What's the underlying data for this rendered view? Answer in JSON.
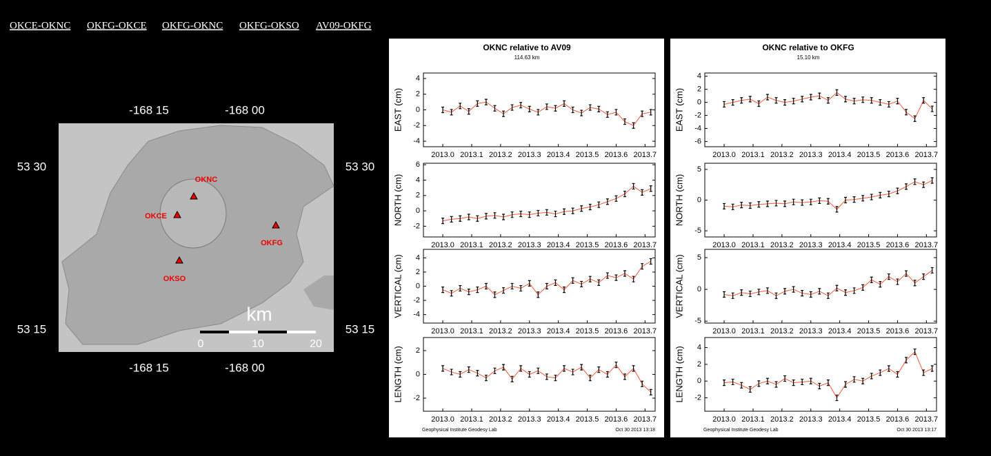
{
  "links": [
    "OKCE-OKNC",
    "OKFG-OKCE",
    "OKFG-OKNC",
    "OKFG-OKSO",
    "AV09-OKFG"
  ],
  "map": {
    "top_labels": [
      "-168 15",
      "-168 00"
    ],
    "bottom_labels": [
      "-168 15",
      "-168 00"
    ],
    "left_labels": [
      "53 30",
      "53 15"
    ],
    "right_labels": [
      "53 30",
      "53 15"
    ],
    "stations": [
      "OKNC",
      "OKCE",
      "OKFG",
      "OKSO"
    ],
    "scale_title": "km",
    "scale_ticks": [
      0,
      10,
      20
    ]
  },
  "panels": [
    {
      "title": "OKNC relative to AV09",
      "subtitle": "114.63 km",
      "footer_left": "Geophysical Institute Geodesy Lab",
      "footer_right": "Oct 30 2013 13:18"
    },
    {
      "title": "OKNC relative to OKFG",
      "subtitle": "15.10 km",
      "footer_left": "Geophysical Institute Geodesy Lab",
      "footer_right": "Oct 30 2013 13:17"
    }
  ],
  "chart_data": [
    {
      "type": "line",
      "ylabel": "EAST (cm)",
      "color": "#000000",
      "line_color": "#ff5533",
      "x": [
        2013.0,
        2013.03,
        2013.06,
        2013.09,
        2013.12,
        2013.15,
        2013.18,
        2013.21,
        2013.24,
        2013.27,
        2013.3,
        2013.33,
        2013.36,
        2013.39,
        2013.42,
        2013.45,
        2013.48,
        2013.51,
        2013.54,
        2013.57,
        2013.6,
        2013.63,
        2013.66,
        2013.69,
        2013.72
      ],
      "values": [
        0,
        -0.3,
        0.5,
        -0.2,
        0.8,
        1.0,
        0.2,
        -0.5,
        0.3,
        0.6,
        0.1,
        -0.3,
        0.4,
        0.2,
        0.8,
        0,
        -0.4,
        0.3,
        0.1,
        -0.6,
        -0.3,
        -1.5,
        -2.0,
        -0.5,
        -0.3
      ],
      "xlim": [
        2012.933,
        2013.735
      ],
      "xticks": [
        {
          "value": 2013.0,
          "label": "2013.0"
        },
        2013.1,
        2013.2,
        2013.3,
        2013.4,
        2013.5,
        2013.6,
        2013.7
      ],
      "ylim": [
        -4.7,
        4.7
      ],
      "yticks": [
        -4,
        -2,
        0,
        2,
        4
      ]
    },
    {
      "type": "line",
      "ylabel": "NORTH (cm)",
      "color": "#000000",
      "line_color": "#ff5533",
      "x": [
        2013.0,
        2013.03,
        2013.06,
        2013.09,
        2013.12,
        2013.15,
        2013.18,
        2013.21,
        2013.24,
        2013.27,
        2013.3,
        2013.33,
        2013.36,
        2013.39,
        2013.42,
        2013.45,
        2013.48,
        2013.51,
        2013.54,
        2013.57,
        2013.6,
        2013.63,
        2013.66,
        2013.69,
        2013.72
      ],
      "values": [
        -1.3,
        -1.1,
        -1.0,
        -0.8,
        -1.0,
        -0.7,
        -0.6,
        -0.8,
        -0.5,
        -0.4,
        -0.5,
        -0.3,
        -0.2,
        -0.4,
        -0.1,
        0,
        0.3,
        0.5,
        0.8,
        1.2,
        1.6,
        2.2,
        3.2,
        2.4,
        2.9
      ],
      "xlim": [
        2012.933,
        2013.735
      ],
      "xticks": [
        {
          "value": 2013.0,
          "label": "2013.0"
        },
        2013.1,
        2013.2,
        2013.3,
        2013.4,
        2013.5,
        2013.6,
        2013.7
      ],
      "ylim": [
        -3.4,
        6.2
      ],
      "yticks": [
        -2,
        0,
        2,
        4,
        6
      ]
    },
    {
      "type": "line",
      "ylabel": "VERTICAL (cm)",
      "color": "#000000",
      "line_color": "#ff5533",
      "x": [
        2013.0,
        2013.03,
        2013.06,
        2013.09,
        2013.12,
        2013.15,
        2013.18,
        2013.21,
        2013.24,
        2013.27,
        2013.3,
        2013.33,
        2013.36,
        2013.39,
        2013.42,
        2013.45,
        2013.48,
        2013.51,
        2013.54,
        2013.57,
        2013.6,
        2013.63,
        2013.66,
        2013.69,
        2013.72
      ],
      "values": [
        -0.5,
        -1,
        -0.3,
        -0.8,
        -0.5,
        0,
        -1.2,
        -0.6,
        0,
        -0.3,
        0.4,
        -1.2,
        0,
        0.5,
        -0.5,
        0.8,
        0.3,
        1.0,
        0.5,
        1.5,
        1.2,
        1.8,
        1.0,
        2.8,
        3.5
      ],
      "xlim": [
        2012.933,
        2013.735
      ],
      "xticks": [
        {
          "value": 2013.0,
          "label": "2013.0"
        },
        2013.1,
        2013.2,
        2013.3,
        2013.4,
        2013.5,
        2013.6,
        2013.7
      ],
      "ylim": [
        -5.2,
        5.2
      ],
      "yticks": [
        -4,
        -2,
        0,
        2,
        4
      ]
    },
    {
      "type": "line",
      "ylabel": "LENGTH (cm)",
      "color": "#000000",
      "line_color": "#ff5533",
      "x": [
        2013.0,
        2013.03,
        2013.06,
        2013.09,
        2013.12,
        2013.15,
        2013.18,
        2013.21,
        2013.24,
        2013.27,
        2013.3,
        2013.33,
        2013.36,
        2013.39,
        2013.42,
        2013.45,
        2013.48,
        2013.51,
        2013.54,
        2013.57,
        2013.6,
        2013.63,
        2013.66,
        2013.69,
        2013.72
      ],
      "values": [
        0.5,
        0.2,
        0,
        0.4,
        0.1,
        -0.3,
        0.3,
        0.6,
        -0.4,
        0.5,
        0,
        0.3,
        -0.2,
        -0.3,
        0.5,
        0.2,
        0.6,
        -0.3,
        0.4,
        0,
        0.8,
        -0.2,
        0.5,
        -0.8,
        -1.5
      ],
      "xlim": [
        2012.933,
        2013.735
      ],
      "xticks": [
        {
          "value": 2013.0,
          "label": "2013.0"
        },
        2013.1,
        2013.2,
        2013.3,
        2013.4,
        2013.5,
        2013.6,
        2013.7
      ],
      "ylim": [
        -3.1,
        3.1
      ],
      "yticks": [
        -2,
        0,
        2
      ]
    },
    {
      "type": "line",
      "ylabel": "EAST (cm)",
      "color": "#000000",
      "line_color": "#ff5533",
      "x": [
        2013.0,
        2013.03,
        2013.06,
        2013.09,
        2013.12,
        2013.15,
        2013.18,
        2013.21,
        2013.24,
        2013.27,
        2013.3,
        2013.33,
        2013.36,
        2013.39,
        2013.42,
        2013.45,
        2013.48,
        2013.51,
        2013.54,
        2013.57,
        2013.6,
        2013.63,
        2013.66,
        2013.69,
        2013.72
      ],
      "values": [
        -0.3,
        0,
        0.3,
        0.5,
        -0.2,
        0.8,
        0.3,
        0,
        0.2,
        0.5,
        0.8,
        1.0,
        0.3,
        1.5,
        0.5,
        0.2,
        0.4,
        0.3,
        0,
        -0.3,
        0.2,
        -1.5,
        -2.5,
        0.3,
        -1.0
      ],
      "xlim": [
        2012.933,
        2013.735
      ],
      "xticks": [
        {
          "value": 2013.0,
          "label": "2013.0"
        },
        2013.1,
        2013.2,
        2013.3,
        2013.4,
        2013.5,
        2013.6,
        2013.7
      ],
      "ylim": [
        -6.8,
        4.5
      ],
      "yticks": [
        -6,
        -4,
        -2,
        0,
        2,
        4
      ]
    },
    {
      "type": "line",
      "ylabel": "NORTH (cm)",
      "color": "#000000",
      "line_color": "#ff5533",
      "x": [
        2013.0,
        2013.03,
        2013.06,
        2013.09,
        2013.12,
        2013.15,
        2013.18,
        2013.21,
        2013.24,
        2013.27,
        2013.3,
        2013.33,
        2013.36,
        2013.39,
        2013.42,
        2013.45,
        2013.48,
        2013.51,
        2013.54,
        2013.57,
        2013.6,
        2013.63,
        2013.66,
        2013.69,
        2013.72
      ],
      "values": [
        -1,
        -1.1,
        -0.8,
        -0.9,
        -0.7,
        -0.6,
        -0.5,
        -0.6,
        -0.3,
        -0.4,
        -0.3,
        -0.1,
        -0.2,
        -1.5,
        0,
        0.1,
        0.3,
        0.5,
        0.8,
        1.0,
        1.5,
        2.2,
        3.0,
        2.5,
        3.2
      ],
      "xlim": [
        2012.933,
        2013.735
      ],
      "xticks": [
        {
          "value": 2013.0,
          "label": "2013.0"
        },
        2013.1,
        2013.2,
        2013.3,
        2013.4,
        2013.5,
        2013.6,
        2013.7
      ],
      "ylim": [
        -6,
        6
      ],
      "yticks": [
        -5,
        0,
        5
      ]
    },
    {
      "type": "line",
      "ylabel": "VERTICAL (cm)",
      "color": "#000000",
      "line_color": "#ff5533",
      "x": [
        2013.0,
        2013.03,
        2013.06,
        2013.09,
        2013.12,
        2013.15,
        2013.18,
        2013.21,
        2013.24,
        2013.27,
        2013.3,
        2013.33,
        2013.36,
        2013.39,
        2013.42,
        2013.45,
        2013.48,
        2013.51,
        2013.54,
        2013.57,
        2013.6,
        2013.63,
        2013.66,
        2013.69,
        2013.72
      ],
      "values": [
        -0.8,
        -1,
        -0.5,
        -0.7,
        -0.4,
        -0.2,
        -1,
        -0.3,
        0,
        -0.6,
        -0.8,
        -0.3,
        -1,
        0.2,
        -0.5,
        -0.2,
        0.3,
        1.5,
        0.8,
        2.0,
        1.2,
        2.5,
        1.0,
        2.0,
        3.0
      ],
      "xlim": [
        2012.933,
        2013.735
      ],
      "xticks": [
        {
          "value": 2013.0,
          "label": "2013.0"
        },
        2013.1,
        2013.2,
        2013.3,
        2013.4,
        2013.5,
        2013.6,
        2013.7
      ],
      "ylim": [
        -5.3,
        6.3
      ],
      "yticks": [
        -5,
        0,
        5
      ]
    },
    {
      "type": "line",
      "ylabel": "LENGTH (cm)",
      "color": "#000000",
      "line_color": "#ff5533",
      "x": [
        2013.0,
        2013.03,
        2013.06,
        2013.09,
        2013.12,
        2013.15,
        2013.18,
        2013.21,
        2013.24,
        2013.27,
        2013.3,
        2013.33,
        2013.36,
        2013.39,
        2013.42,
        2013.45,
        2013.48,
        2013.51,
        2013.54,
        2013.57,
        2013.6,
        2013.63,
        2013.66,
        2013.69,
        2013.72
      ],
      "values": [
        -0.2,
        -0.1,
        -0.5,
        -1,
        -0.3,
        0,
        -0.4,
        0.3,
        -0.2,
        -0.1,
        0,
        -0.6,
        -0.2,
        -2.0,
        -0.4,
        0.2,
        0,
        0.6,
        1.0,
        1.5,
        0.8,
        2.5,
        3.5,
        1.0,
        1.5
      ],
      "xlim": [
        2012.933,
        2013.735
      ],
      "xticks": [
        {
          "value": 2013.0,
          "label": "2013.0"
        },
        2013.1,
        2013.2,
        2013.3,
        2013.4,
        2013.5,
        2013.6,
        2013.7
      ],
      "ylim": [
        -3.6,
        5.2
      ],
      "yticks": [
        -2,
        0,
        2,
        4
      ]
    }
  ]
}
